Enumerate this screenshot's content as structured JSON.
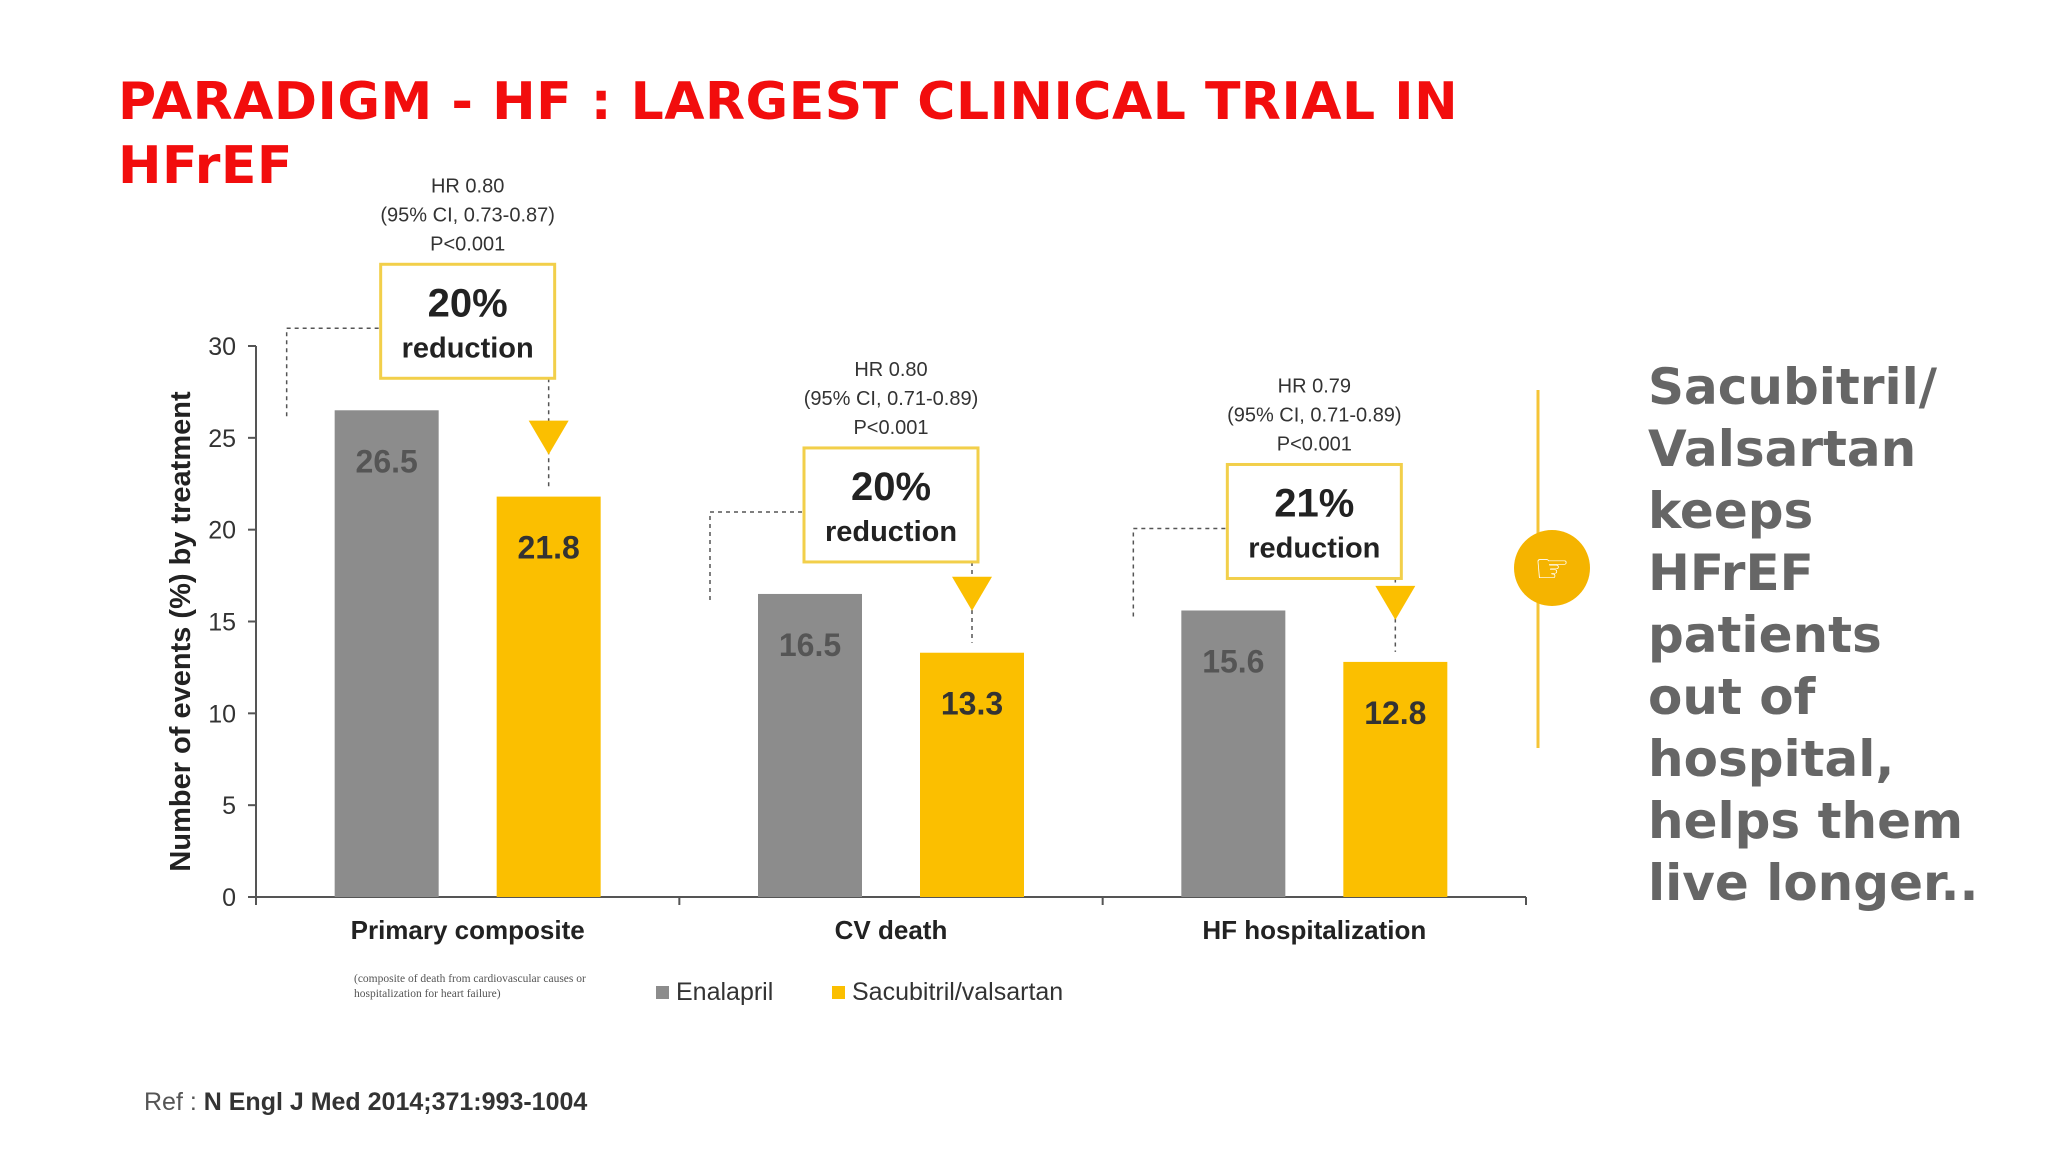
{
  "slide": {
    "title": "PARADIGM - HF : LARGEST CLINICAL TRIAL IN HFrEF",
    "side_lines": [
      "Sacubitril/",
      "Valsartan",
      "keeps",
      "HFrEF",
      "patients",
      "out of",
      "hospital,",
      "helps them",
      "live longer.."
    ],
    "ref_label": "Ref : ",
    "ref_citation": "N Engl J Med 2014;371:993-1004"
  },
  "colors": {
    "title": "#f20d0d",
    "enalapril": "#8c8c8c",
    "sacubitril": "#fbbf00",
    "side_text": "#666666",
    "accent_circle": "#f5b400"
  },
  "icon": "pointing-hand-icon",
  "chart_data": {
    "type": "bar",
    "ylabel": "Number of events (%) by treatment",
    "ylim": [
      0,
      30
    ],
    "yticks": [
      0,
      5,
      10,
      15,
      20,
      25,
      30
    ],
    "categories": [
      "Primary composite",
      "CV death",
      "HF hospitalization"
    ],
    "category_note": "(composite of death from cardiovascular causes or hospitalization for heart failure)",
    "series": [
      {
        "name": "Enalapril",
        "values": [
          26.5,
          16.5,
          15.6
        ],
        "labels": [
          "26.5",
          "16.5",
          "15.6"
        ]
      },
      {
        "name": "Sacubitril/valsartan",
        "values": [
          21.8,
          13.3,
          12.8
        ],
        "labels": [
          "21.8",
          "13.3",
          "12.8"
        ]
      }
    ],
    "annotations": [
      {
        "hr": "HR 0.80",
        "ci": "(95% CI, 0.73-0.87)",
        "p": "P<0.001",
        "pct": "20%",
        "word": "reduction"
      },
      {
        "hr": "HR 0.80",
        "ci": "(95% CI, 0.71-0.89)",
        "p": "P<0.001",
        "pct": "20%",
        "word": "reduction"
      },
      {
        "hr": "HR 0.79",
        "ci": "(95% CI, 0.71-0.89)",
        "p": "P<0.001",
        "pct": "21%",
        "word": "reduction"
      }
    ],
    "legend_position": "bottom",
    "grid": false
  }
}
